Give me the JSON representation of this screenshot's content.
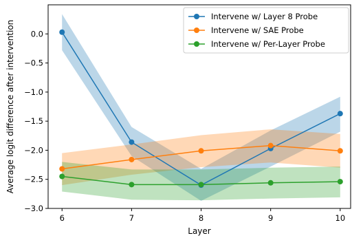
{
  "chart_data": {
    "type": "line",
    "title": "",
    "xlabel": "Layer",
    "ylabel": "Average logit difference after intervention",
    "x": [
      6,
      7,
      8,
      9,
      10
    ],
    "xticks": [
      "6",
      "7",
      "8",
      "9",
      "10"
    ],
    "yticks": [
      "0.0",
      "−0.5",
      "−1.0",
      "−1.5",
      "−2.0",
      "−2.5",
      "−3.0"
    ],
    "xlim": [
      5.8,
      10.15
    ],
    "ylim": [
      -3.0,
      0.5
    ],
    "grid": false,
    "legend_position": "top-right",
    "series": [
      {
        "name": "Intervene w/ Layer 8 Probe",
        "color": "#1f77b4",
        "values": [
          0.03,
          -1.86,
          -2.6,
          -1.97,
          -1.37
        ],
        "band_lower": [
          -0.28,
          -2.1,
          -2.87,
          -2.28,
          -1.68
        ],
        "band_upper": [
          0.34,
          -1.6,
          -2.32,
          -1.66,
          -1.08
        ]
      },
      {
        "name": "Intervene w/ SAE Probe",
        "color": "#ff7f0e",
        "values": [
          -2.32,
          -2.16,
          -2.01,
          -1.92,
          -2.01
        ],
        "band_lower": [
          -2.6,
          -2.42,
          -2.29,
          -2.21,
          -2.3
        ],
        "band_upper": [
          -2.05,
          -1.9,
          -1.74,
          -1.64,
          -1.72
        ]
      },
      {
        "name": "Intervene w/ Per-Layer Probe",
        "color": "#2ca02c",
        "values": [
          -2.45,
          -2.59,
          -2.59,
          -2.56,
          -2.54
        ],
        "band_lower": [
          -2.71,
          -2.85,
          -2.86,
          -2.83,
          -2.81
        ],
        "band_upper": [
          -2.2,
          -2.33,
          -2.33,
          -2.3,
          -2.28
        ]
      }
    ]
  }
}
